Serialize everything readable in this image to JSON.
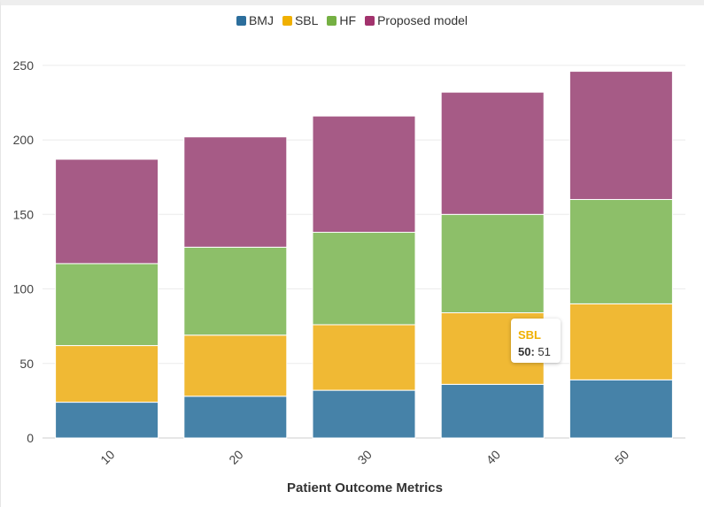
{
  "chart_data": {
    "type": "bar",
    "stacked": true,
    "categories": [
      "10",
      "20",
      "30",
      "40",
      "50"
    ],
    "series": [
      {
        "name": "BMJ",
        "color": "#4682a8",
        "values": [
          24,
          28,
          32,
          36,
          39
        ]
      },
      {
        "name": "SBL",
        "color": "#f0b934",
        "values": [
          38,
          41,
          44,
          48,
          51
        ]
      },
      {
        "name": "HF",
        "color": "#8dbf69",
        "values": [
          55,
          59,
          62,
          66,
          70
        ]
      },
      {
        "name": "Proposed model",
        "color": "#a65b86",
        "values": [
          70,
          74,
          78,
          82,
          86
        ]
      }
    ],
    "legend_colors": [
      "#2c6e9c",
      "#f0b000",
      "#75b043",
      "#a2336d"
    ],
    "xlabel": "Patient Outcome Metrics",
    "ylabel": "",
    "ylim": [
      0,
      260
    ],
    "yticks": [
      0,
      50,
      100,
      150,
      200,
      250
    ],
    "grid": true,
    "legend_position": "top-center",
    "tooltip": {
      "series": "SBL",
      "x": "50:",
      "value": "51",
      "color": "#f0b000"
    }
  }
}
